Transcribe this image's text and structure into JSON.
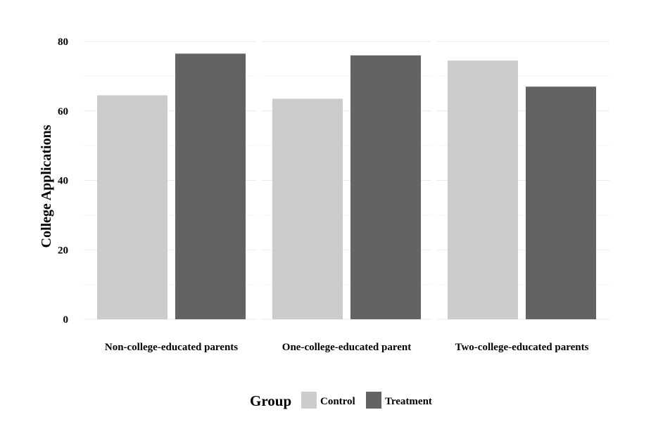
{
  "chart_data": {
    "type": "bar",
    "title": "",
    "xlabel": "",
    "ylabel": "College Applications",
    "ylim": [
      0,
      80
    ],
    "yticks": [
      0,
      20,
      40,
      60,
      80
    ],
    "categories": [
      "Non-college-educated parents",
      "One-college-educated parent",
      "Two-college-educated parents"
    ],
    "series": [
      {
        "name": "Control",
        "color": "#cccccc",
        "values": [
          64.5,
          63.5,
          74.5
        ]
      },
      {
        "name": "Treatment",
        "color": "#636363",
        "values": [
          76.5,
          76.0,
          67.0
        ]
      }
    ],
    "legend": {
      "title": "Group",
      "position": "bottom"
    },
    "grid": true
  }
}
